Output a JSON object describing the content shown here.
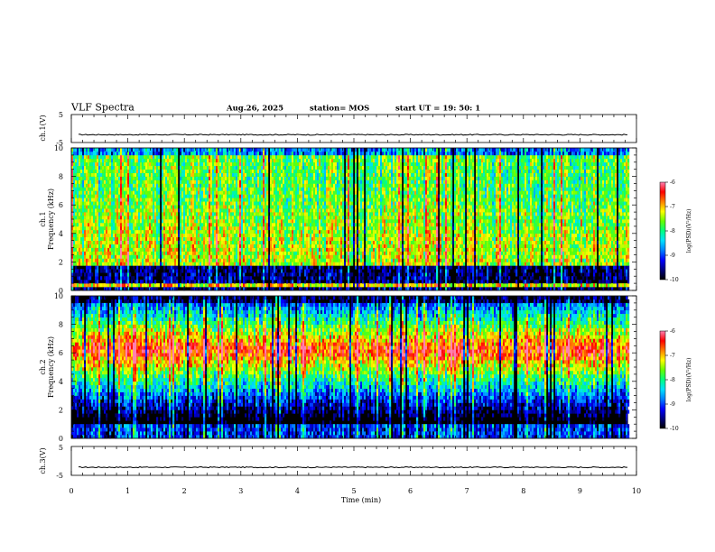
{
  "header": {
    "title": "VLF Spectra",
    "date": "Aug.26, 2025",
    "station": "station= MOS",
    "start_ut": "start  UT  =    19: 50: 1"
  },
  "colors": {
    "spectrogram_background": "#000000",
    "colormap": [
      "#000000",
      "#00007f",
      "#0000ff",
      "#0080ff",
      "#00e0ff",
      "#00ff80",
      "#66ff00",
      "#ffff00",
      "#ff8000",
      "#ff0000",
      "#ff80b0"
    ]
  },
  "chart_data": [
    {
      "type": "line",
      "name": "ch1-waveform",
      "ylabel": "ch.1(V)",
      "ylim": [
        -5,
        5
      ],
      "yticks": [
        "5",
        "-5"
      ],
      "baseline_value": -2.2,
      "xlim": [
        0,
        10
      ]
    },
    {
      "type": "heatmap",
      "name": "ch1-spectrogram",
      "ylabel_line1": "ch.1",
      "ylabel_line2": "Frequency  (kHz)",
      "ylim": [
        0,
        10
      ],
      "yticks": [
        "0",
        "2",
        "4",
        "6",
        "8",
        "10"
      ],
      "data_end_min": 9.85,
      "profile": "broadband",
      "colorbar": {
        "label": "log(PSD)(V²/Hz)",
        "range": [
          -10,
          -6
        ],
        "ticks": [
          "-6",
          "-7",
          "-8",
          "-9",
          "-10"
        ]
      }
    },
    {
      "type": "heatmap",
      "name": "ch2-spectrogram",
      "ylabel_line1": "ch.2",
      "ylabel_line2": "Frequency  (kHz)",
      "ylim": [
        0,
        10
      ],
      "yticks": [
        "0",
        "2",
        "4",
        "6",
        "8",
        "10"
      ],
      "data_end_min": 9.85,
      "profile": "band-peaked",
      "colorbar": {
        "label": "log(PSD)(V²/Hz)",
        "range": [
          -10,
          -6
        ],
        "ticks": [
          "-6",
          "-7",
          "-8",
          "-9",
          "-10"
        ]
      }
    },
    {
      "type": "line",
      "name": "ch3-waveform",
      "ylabel": "ch.3(V)",
      "ylim": [
        -5,
        5
      ],
      "yticks": [
        "5",
        "-5"
      ],
      "baseline_value": -2.2,
      "xlim": [
        0,
        10
      ]
    }
  ],
  "x_axis": {
    "label": "Time  (min)",
    "range": [
      0,
      10
    ],
    "ticks": [
      "0",
      "1",
      "2",
      "3",
      "4",
      "5",
      "6",
      "7",
      "8",
      "9",
      "10"
    ]
  }
}
